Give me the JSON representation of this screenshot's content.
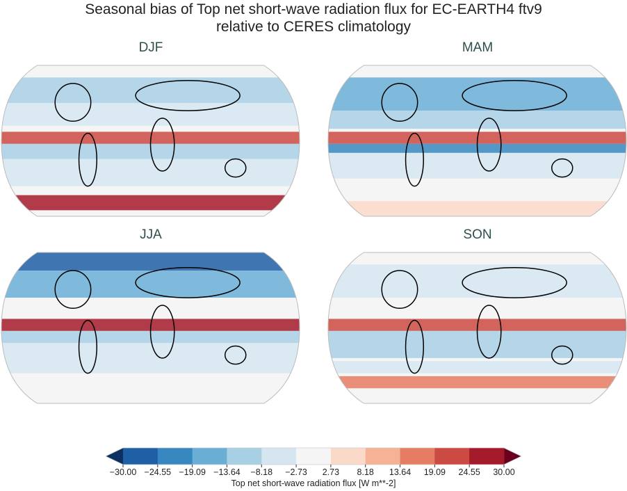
{
  "title_line1": "Seasonal bias of Top net short-wave radiation flux for EC-EARTH4 ftv9",
  "title_line2": "relative to CERES climatology",
  "panels": [
    {
      "label": "DJF"
    },
    {
      "label": "MAM"
    },
    {
      "label": "JJA"
    },
    {
      "label": "SON"
    }
  ],
  "colorbar": {
    "label": "Top net short-wave radiation flux [W m**-2]",
    "ticks": [
      "−30.00",
      "−24.55",
      "−19.09",
      "−13.64",
      "−8.18",
      "−2.73",
      "2.73",
      "8.18",
      "13.64",
      "19.09",
      "24.55",
      "30.00"
    ],
    "colors": [
      "#1f5fa5",
      "#3787c0",
      "#6aaed6",
      "#a8d0e5",
      "#d6e6f1",
      "#f5f5f5",
      "#fbd9c9",
      "#f5b294",
      "#e67d63",
      "#cb4a42",
      "#a51a2a"
    ],
    "under_color": "#0c3060",
    "over_color": "#6a0020",
    "extend": "both"
  }
}
